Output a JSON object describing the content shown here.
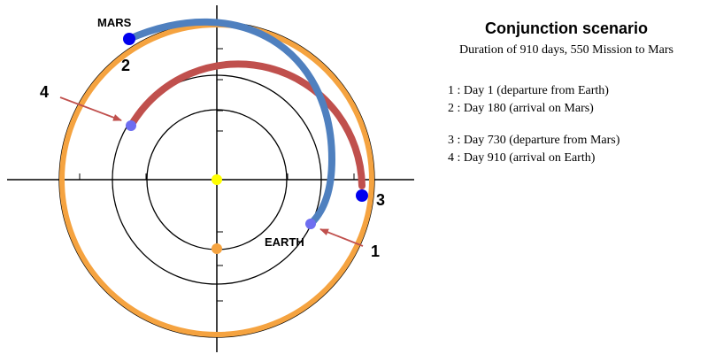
{
  "title": "Conjunction scenario",
  "subtitle": "Duration of 910 days, 550 Mission to Mars",
  "planets": {
    "mars": "MARS",
    "earth": "EARTH"
  },
  "markers": {
    "m1": "1",
    "m2": "2",
    "m3": "3",
    "m4": "4"
  },
  "events": [
    "1 : Day 1 (departure from Earth)",
    "2 : Day 180 (arrival on Mars)",
    "3 : Day 730 (departure from Mars)",
    "4 : Day 910 (arrival on Earth)"
  ],
  "colors": {
    "mars_orbit": "#f5a340",
    "transfer_out": "#4f80bf",
    "transfer_back": "#c0504d",
    "blue_dot": "#0000ee",
    "light_blue_dot": "#6d6df0",
    "sun": "#ffff00",
    "arrow": "#c0504d"
  }
}
